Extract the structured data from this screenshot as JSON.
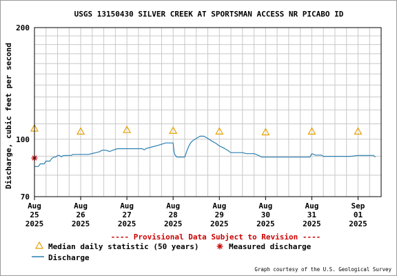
{
  "chart_data": {
    "type": "line",
    "title": "USGS 13150430 SILVER CREEK AT SPORTSMAN ACCESS NR PICABO ID",
    "xlabel": "",
    "ylabel": "Discharge, cubic feet per second",
    "ylim": [
      70,
      200
    ],
    "y_scale": "log",
    "grid": true,
    "y_ticks": [
      70,
      100,
      200
    ],
    "x_range": [
      "2025-08-25 00:00",
      "2025-09-01 12:00"
    ],
    "x_ticks": [
      {
        "date": "2025-08-25",
        "label": [
          "Aug",
          "25",
          "2025"
        ]
      },
      {
        "date": "2025-08-26",
        "label": [
          "Aug",
          "26",
          "2025"
        ]
      },
      {
        "date": "2025-08-27",
        "label": [
          "Aug",
          "27",
          "2025"
        ]
      },
      {
        "date": "2025-08-28",
        "label": [
          "Aug",
          "28",
          "2025"
        ]
      },
      {
        "date": "2025-08-29",
        "label": [
          "Aug",
          "29",
          "2025"
        ]
      },
      {
        "date": "2025-08-30",
        "label": [
          "Aug",
          "30",
          "2025"
        ]
      },
      {
        "date": "2025-08-31",
        "label": [
          "Aug",
          "31",
          "2025"
        ]
      },
      {
        "date": "2025-09-01",
        "label": [
          "Sep",
          "01",
          "2025"
        ]
      }
    ],
    "series": [
      {
        "name": "Discharge",
        "kind": "line",
        "color": "#2a7eb0",
        "points": [
          [
            "2025-08-25 00:00",
            84.4
          ],
          [
            "2025-08-25 02:00",
            84.4
          ],
          [
            "2025-08-25 03:00",
            85.8
          ],
          [
            "2025-08-25 05:00",
            85.8
          ],
          [
            "2025-08-25 06:00",
            87.3
          ],
          [
            "2025-08-25 08:00",
            87.3
          ],
          [
            "2025-08-25 09:00",
            88.8
          ],
          [
            "2025-08-25 10:00",
            89.5
          ],
          [
            "2025-08-25 11:00",
            89.5
          ],
          [
            "2025-08-25 12:00",
            90.4
          ],
          [
            "2025-08-25 13:00",
            90.4
          ],
          [
            "2025-08-25 14:00",
            89.6
          ],
          [
            "2025-08-25 15:00",
            90.4
          ],
          [
            "2025-08-25 19:00",
            90.4
          ],
          [
            "2025-08-25 20:00",
            91.0
          ],
          [
            "2025-08-26 04:00",
            91.0
          ],
          [
            "2025-08-26 06:00",
            91.5
          ],
          [
            "2025-08-26 08:00",
            92.0
          ],
          [
            "2025-08-26 10:00",
            92.6
          ],
          [
            "2025-08-26 11:00",
            93.4
          ],
          [
            "2025-08-26 13:00",
            93.4
          ],
          [
            "2025-08-26 15:00",
            92.7
          ],
          [
            "2025-08-26 17:00",
            93.5
          ],
          [
            "2025-08-26 19:00",
            94.3
          ],
          [
            "2025-08-27 08:00",
            94.3
          ],
          [
            "2025-08-27 09:00",
            93.6
          ],
          [
            "2025-08-27 10:00",
            94.4
          ],
          [
            "2025-08-27 13:00",
            95.3
          ],
          [
            "2025-08-27 16:00",
            96.2
          ],
          [
            "2025-08-27 18:00",
            96.9
          ],
          [
            "2025-08-27 20:00",
            97.7
          ],
          [
            "2025-08-28 00:00",
            97.7
          ],
          [
            "2025-08-28 00:30",
            92.3
          ],
          [
            "2025-08-28 01:00",
            90.6
          ],
          [
            "2025-08-28 02:00",
            89.5
          ],
          [
            "2025-08-28 06:00",
            89.5
          ],
          [
            "2025-08-28 07:00",
            92.6
          ],
          [
            "2025-08-28 08:00",
            95.5
          ],
          [
            "2025-08-28 09:00",
            97.6
          ],
          [
            "2025-08-28 10:00",
            98.9
          ],
          [
            "2025-08-28 12:00",
            100.5
          ],
          [
            "2025-08-28 14:00",
            101.9
          ],
          [
            "2025-08-28 16:00",
            101.9
          ],
          [
            "2025-08-28 18:00",
            100.5
          ],
          [
            "2025-08-28 20:00",
            98.9
          ],
          [
            "2025-08-28 22:00",
            97.6
          ],
          [
            "2025-08-29 00:00",
            95.9
          ],
          [
            "2025-08-29 02:00",
            94.8
          ],
          [
            "2025-08-29 04:00",
            93.6
          ],
          [
            "2025-08-29 06:00",
            92.0
          ],
          [
            "2025-08-29 12:00",
            92.0
          ],
          [
            "2025-08-29 14:00",
            91.4
          ],
          [
            "2025-08-29 18:00",
            91.4
          ],
          [
            "2025-08-29 20:00",
            90.6
          ],
          [
            "2025-08-29 22:00",
            89.5
          ],
          [
            "2025-08-30 23:00",
            89.5
          ],
          [
            "2025-08-31 00:00",
            91.4
          ],
          [
            "2025-08-31 02:00",
            90.6
          ],
          [
            "2025-08-31 05:00",
            90.6
          ],
          [
            "2025-08-31 06:00",
            89.9
          ],
          [
            "2025-08-31 12:00",
            89.9
          ],
          [
            "2025-08-31 16:00",
            89.9
          ],
          [
            "2025-08-31 20:00",
            89.9
          ],
          [
            "2025-09-01 00:00",
            90.4
          ],
          [
            "2025-09-01 08:00",
            90.4
          ],
          [
            "2025-09-01 09:00",
            89.5
          ]
        ]
      },
      {
        "name": "Median daily statistic (50 years)",
        "kind": "triangle",
        "color": "#e8a000",
        "points": [
          [
            "2025-08-25 00:00",
            107
          ],
          [
            "2025-08-26 00:00",
            105
          ],
          [
            "2025-08-27 00:00",
            106
          ],
          [
            "2025-08-28 00:00",
            105.5
          ],
          [
            "2025-08-29 00:00",
            105
          ],
          [
            "2025-08-30 00:00",
            104.5
          ],
          [
            "2025-08-31 00:00",
            105
          ],
          [
            "2025-09-01 00:00",
            105
          ]
        ]
      },
      {
        "name": "Measured discharge",
        "kind": "asterisk",
        "color": "#cc0000",
        "points": [
          [
            "2025-08-25 00:00",
            89
          ]
        ]
      }
    ],
    "provisional_notice": "---- Provisional Data Subject to Revision ----",
    "credit": "Graph courtesy of the U.S. Geological Survey"
  }
}
